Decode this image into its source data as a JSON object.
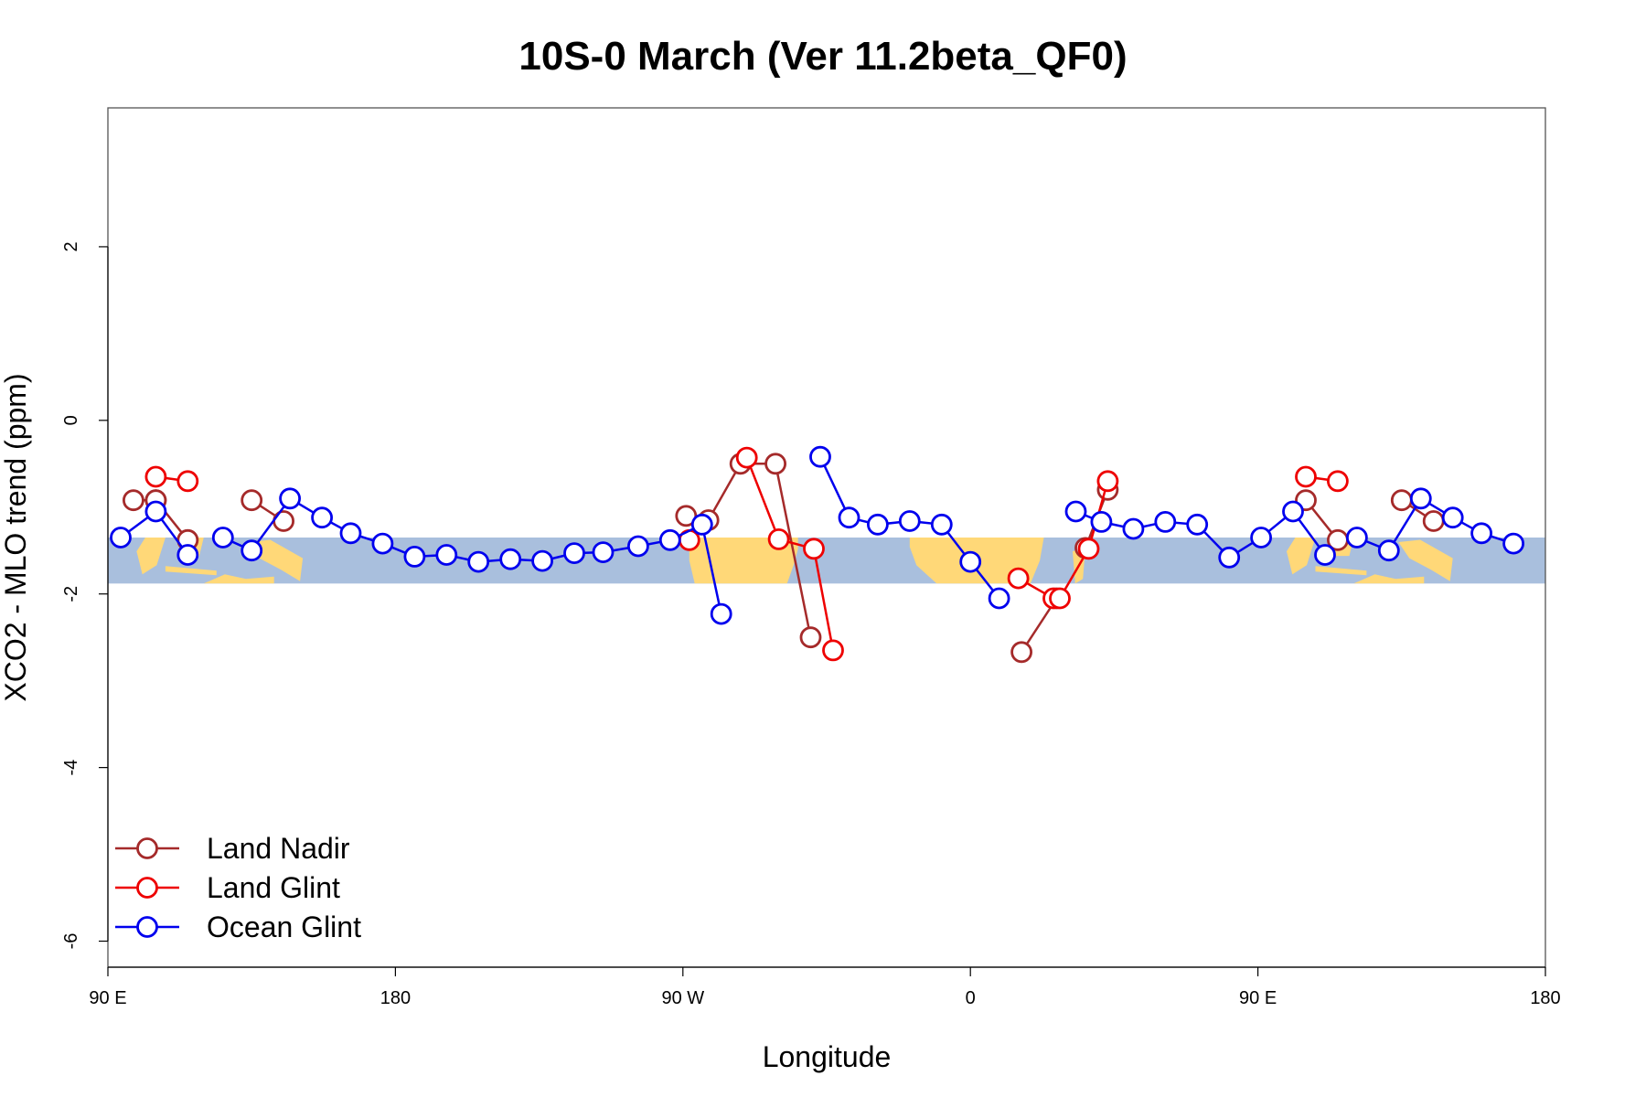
{
  "chart_data": {
    "type": "line",
    "title": "10S-0 March (Ver 11.2beta_QF0)",
    "xlabel": "Longitude",
    "ylabel": "XCO2 - MLO trend (ppm)",
    "xlim": [
      90,
      540
    ],
    "ylim": [
      -6.3,
      3.6
    ],
    "x_ticks": [
      {
        "value": 90,
        "label": "90 E"
      },
      {
        "value": 180,
        "label": "180"
      },
      {
        "value": 270,
        "label": "90 W"
      },
      {
        "value": 360,
        "label": "0"
      },
      {
        "value": 450,
        "label": "90 E"
      },
      {
        "value": 540,
        "label": "180"
      }
    ],
    "y_ticks": [
      {
        "value": 2,
        "label": "2"
      },
      {
        "value": 0,
        "label": "0"
      },
      {
        "value": -2,
        "label": "-2"
      },
      {
        "value": -4,
        "label": "-4"
      },
      {
        "value": -6,
        "label": "-6"
      }
    ],
    "grid": false,
    "legend_position": "bottom-left",
    "background_band": {
      "y_range": [
        -1.88,
        -1.35
      ],
      "ocean_color": "#a9bfdd",
      "land_color": "#ffd878"
    },
    "series": [
      {
        "name": "Land Nadir",
        "color": "#a52a2a",
        "segments": [
          [
            [
              105,
              -0.92
            ],
            [
              115,
              -1.38
            ],
            [
              115,
              -1.38
            ]
          ],
          [
            [
              135,
              -0.92
            ],
            [
              145,
              -1.16
            ]
          ],
          [
            [
              98,
              -0.92
            ],
            [
              105,
              -0.92
            ]
          ],
          [
            [
              271,
              -1.1
            ],
            [
              278,
              -1.15
            ],
            [
              288,
              -0.5
            ],
            [
              299,
              -0.5
            ],
            [
              310,
              -2.5
            ]
          ],
          [
            [
              376,
              -2.67
            ],
            [
              387,
              -2.05
            ]
          ],
          [
            [
              396,
              -1.47
            ],
            [
              403,
              -0.8
            ]
          ],
          [
            [
              465,
              -0.92
            ],
            [
              475,
              -1.38
            ]
          ],
          [
            [
              495,
              -0.92
            ],
            [
              505,
              -1.16
            ]
          ]
        ]
      },
      {
        "name": "Land Glint",
        "color": "#ee0000",
        "segments": [
          [
            [
              105,
              -0.65
            ],
            [
              115,
              -0.7
            ]
          ],
          [
            [
              272,
              -1.38
            ]
          ],
          [
            [
              290,
              -0.43
            ],
            [
              300,
              -1.37
            ],
            [
              311,
              -1.48
            ],
            [
              317,
              -2.65
            ]
          ],
          [
            [
              375,
              -1.82
            ],
            [
              386,
              -2.05
            ],
            [
              388,
              -2.05
            ],
            [
              397,
              -1.48
            ],
            [
              403,
              -0.7
            ]
          ],
          [
            [
              465,
              -0.65
            ],
            [
              475,
              -0.7
            ]
          ]
        ]
      },
      {
        "name": "Ocean Glint",
        "color": "#0000ee",
        "segments": [
          [
            [
              94,
              -1.35
            ],
            [
              105,
              -1.05
            ],
            [
              115,
              -1.55
            ]
          ],
          [
            [
              126,
              -1.35
            ],
            [
              135,
              -1.5
            ],
            [
              147,
              -0.9
            ],
            [
              157,
              -1.12
            ],
            [
              166,
              -1.3
            ],
            [
              176,
              -1.42
            ],
            [
              186,
              -1.57
            ],
            [
              196,
              -1.55
            ],
            [
              206,
              -1.63
            ],
            [
              216,
              -1.6
            ],
            [
              226,
              -1.62
            ],
            [
              236,
              -1.53
            ],
            [
              245,
              -1.52
            ],
            [
              256,
              -1.45
            ],
            [
              266,
              -1.38
            ],
            [
              276,
              -1.2
            ],
            [
              282,
              -2.23
            ]
          ],
          [
            [
              313,
              -0.42
            ],
            [
              322,
              -1.12
            ],
            [
              331,
              -1.2
            ],
            [
              341,
              -1.16
            ],
            [
              351,
              -1.2
            ],
            [
              360,
              -1.63
            ],
            [
              369,
              -2.05
            ]
          ],
          [
            [
              393,
              -1.05
            ],
            [
              401,
              -1.17
            ],
            [
              411,
              -1.25
            ],
            [
              421,
              -1.17
            ],
            [
              431,
              -1.2
            ],
            [
              441,
              -1.58
            ],
            [
              451,
              -1.35
            ],
            [
              461,
              -1.05
            ],
            [
              471,
              -1.55
            ]
          ],
          [
            [
              481,
              -1.35
            ],
            [
              491,
              -1.5
            ],
            [
              501,
              -0.9
            ],
            [
              511,
              -1.12
            ],
            [
              520,
              -1.3
            ],
            [
              530,
              -1.42
            ]
          ]
        ]
      }
    ]
  }
}
